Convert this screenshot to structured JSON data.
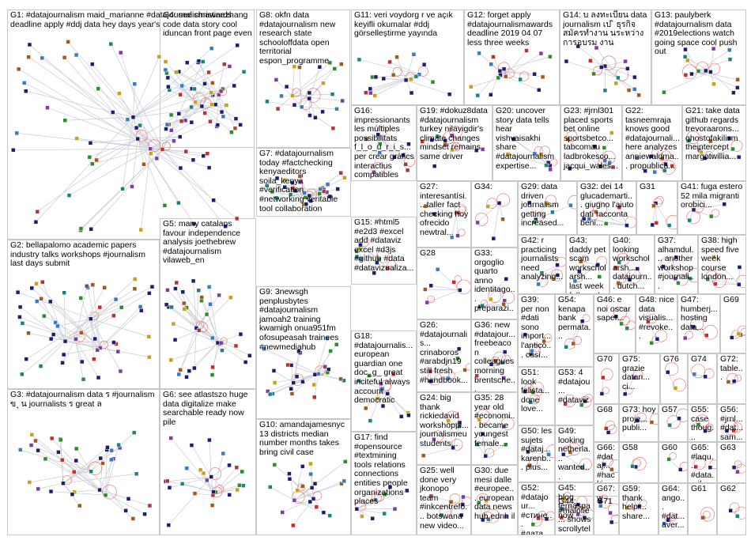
{
  "groups": [
    {
      "id": "G1",
      "text": "G1: #datajournalism maid_marianne #datajournalismawards deadline apply #ddj data hey days year's",
      "nodes": 70
    },
    {
      "id": "G4",
      "text": "G4: see christinezhang code data story cool iduncan front page even",
      "nodes": 46
    },
    {
      "id": "G8",
      "text": "G8: okfn data #datajournalism new research state schooloffdata open territorial espon_programme",
      "nodes": 24
    },
    {
      "id": "G11",
      "text": "G11: veri voydorg r ve açık keyifli okumalar #ddj görselleştirme yayında",
      "nodes": 20
    },
    {
      "id": "G12",
      "text": "G12: forget apply #datajournalismawards deadline 2019 04 07 less three weeks",
      "nodes": 18
    },
    {
      "id": "G14",
      "text": "G14: บ ลงทะเบียน data journalism เป ิ ธุรกิจสมัครทำงาน นระหว่าง การอบรม งาน",
      "nodes": 16
    },
    {
      "id": "G13",
      "text": "G13: paulyberk #datajournalism data #2019elections watch going space cool push out",
      "nodes": 16
    },
    {
      "id": "G16",
      "text": "G16: impressionants les múltiples possibilitats f_l_o_u_r_i_s... per crear gràfics interactius compatibles",
      "nodes": 10
    },
    {
      "id": "G19",
      "text": "G19: #dokuz8data #datajournalism turkey nilayigdir's climate changes mindset remains same driver",
      "nodes": 10
    },
    {
      "id": "G20",
      "text": "G20: uncover story data tells hear vishvaisakhi share #datajournalism expertise...",
      "nodes": 9
    },
    {
      "id": "G23",
      "text": "G23: #jrnl301 placed sports bet online sportsbetco... tabcomau ladbrokesco... jacqui_wales...",
      "nodes": 9
    },
    {
      "id": "G22",
      "text": "G22: tasneemraja knows good #datajournali... here analyzes anniewaldma... propublica...",
      "nodes": 8
    },
    {
      "id": "G21",
      "text": "G21: take data github regards trevoraarons... ghostofakilism theintercept margotwillia...",
      "nodes": 8
    },
    {
      "id": "G7",
      "text": "G7: #datajournalism today #factchecking kenyaeditors soila_kenya #verification #networking veritable tool collaboration",
      "nodes": 32
    },
    {
      "id": "G27",
      "text": "G27: interesantísi... taller fact checking hoy ofrecido newtral...",
      "nodes": 6
    },
    {
      "id": "G34",
      "text": "G34:",
      "nodes": 5
    },
    {
      "id": "G29",
      "text": "G29: data driven journalism getting increased...",
      "nodes": 6
    },
    {
      "id": "G32",
      "text": "G32: dei 14 glucademarti... giugno l'aiuto dati racconta beni...",
      "nodes": 6
    },
    {
      "id": "G31",
      "text": "G31",
      "nodes": 5
    },
    {
      "id": "G41",
      "text": "G41: fuga estero 52 mila migranti orobici...",
      "nodes": 4
    },
    {
      "id": "G15",
      "text": "G15: #html5 #e2d3 #excel add #dataviz excel #d3js #github #data #datavizualiza...",
      "nodes": 9
    },
    {
      "id": "G28",
      "text": "G28",
      "nodes": 6
    },
    {
      "id": "G33",
      "text": "G33: orgoglio quarto anno identitago... preparazi...",
      "nodes": 6
    },
    {
      "id": "G42",
      "text": "G42: r practicing journalists need analyzing...",
      "nodes": 5
    },
    {
      "id": "G43",
      "text": "G43: daddy pet scam workscholarsh... last week followed...",
      "nodes": 5
    },
    {
      "id": "G40",
      "text": "G40: looking workscholarsh... datajourn... dutch...",
      "nodes": 5
    },
    {
      "id": "G37",
      "text": "G37: alhamdul... another workshop #journali...",
      "nodes": 5
    },
    {
      "id": "G38",
      "text": "G38: high speed five week course london...",
      "nodes": 5
    },
    {
      "id": "G5",
      "text": "G5: many catalans favour independence analysis joethebrew #datajournalism vilaweb_en",
      "nodes": 40
    },
    {
      "id": "G2",
      "text": "G2: bellapalomo academic papers industry talks workshops #journalism last days submit",
      "nodes": 55
    },
    {
      "id": "G9",
      "text": "G9: 3newsgh penplusbytes #datajournalism jamoah2 training kwamigh onua951fm ofosupeasah trainees #newmediahub",
      "nodes": 28
    },
    {
      "id": "G39",
      "text": "G39: per non #dati sono import... l'antico... così...",
      "nodes": 4
    },
    {
      "id": "G54",
      "text": "G54: kenapa bank permata...",
      "nodes": 3
    },
    {
      "id": "G46",
      "text": "G46: e noi oscar saper...",
      "nodes": 3
    },
    {
      "id": "G48",
      "text": "G48: nice data visualis... #revoke...",
      "nodes": 3
    },
    {
      "id": "G47",
      "text": "G47: humberj... hosting data...",
      "nodes": 3
    },
    {
      "id": "G69",
      "text": "G69",
      "nodes": 3
    },
    {
      "id": "G18",
      "text": "G18: #datajournalis... european guardian one doc_g_ great inciteful always account democratic",
      "nodes": 14
    },
    {
      "id": "G26",
      "text": "G26: #datajournalis... crinaboros #arabdjn19 still fresh #handbook...",
      "nodes": 6
    },
    {
      "id": "G36",
      "text": "G36: new #datajour... freebeacon colleagues morning brentsche...",
      "nodes": 6
    },
    {
      "id": "G51",
      "text": "G51: look felista... done love...",
      "nodes": 3
    },
    {
      "id": "G53",
      "text": "G53: 4 #datajou... #dataviz",
      "nodes": 3
    },
    {
      "id": "G70",
      "text": "G70",
      "nodes": 2
    },
    {
      "id": "G75",
      "text": "G75: grazie datan... ci...",
      "nodes": 2
    },
    {
      "id": "G76",
      "text": "G76",
      "nodes": 2
    },
    {
      "id": "G74",
      "text": "G74",
      "nodes": 2
    },
    {
      "id": "G72",
      "text": "G72: table...",
      "nodes": 2
    },
    {
      "id": "G3",
      "text": "G3: #datajournalism data ร #journalism ข ุ น journalists ร great ล",
      "nodes": 40
    },
    {
      "id": "G6",
      "text": "G6: see atlastszo huge data digitalize make searchable ready now pile",
      "nodes": 26
    },
    {
      "id": "G68",
      "text": "G68",
      "nodes": 2
    },
    {
      "id": "G24",
      "text": "G24: big thank rickiedavid workshoppi... journalismeu students...",
      "nodes": 6
    },
    {
      "id": "G35",
      "text": "G35: 28 year old #economi... became youngest female...",
      "nodes": 6
    },
    {
      "id": "G49",
      "text": "G49: looking netherla... wanted...",
      "nodes": 3
    },
    {
      "id": "G73",
      "text": "G73: hoy proje... publi...",
      "nodes": 2
    },
    {
      "id": "G57",
      "text": "G57",
      "nodes": 2
    },
    {
      "id": "G55",
      "text": "G55: case thoug... #data...",
      "nodes": 2
    },
    {
      "id": "G56",
      "text": "G56: #jrnl... #dat... sam...",
      "nodes": 2
    },
    {
      "id": "G10",
      "text": "G10: amandajamesnyc 13 districts median number months takes bring civil case",
      "nodes": 22
    },
    {
      "id": "G17",
      "text": "G17: find #opensource #textmining tools relations connections entities people organizations places",
      "nodes": 10
    },
    {
      "id": "G50",
      "text": "G50: les sujets #dataj... karenb... plus...",
      "nodes": 3
    },
    {
      "id": "G66",
      "text": "G66: #dataj... #hacki...",
      "nodes": 2
    },
    {
      "id": "G58",
      "text": "G58",
      "nodes": 2
    },
    {
      "id": "G60",
      "text": "G60",
      "nodes": 2
    },
    {
      "id": "G65",
      "text": "G65: #laqu... #data... il...",
      "nodes": 2
    },
    {
      "id": "G63",
      "text": "G63",
      "nodes": 2
    },
    {
      "id": "G45",
      "text": "G45: blog ternaspa now online...",
      "nodes": 3
    },
    {
      "id": "G67",
      "text": "G67: w",
      "nodes": 2
    },
    {
      "id": "G25",
      "text": "G25: well done very jkonopo team #inkcentrefo... botswana new video...",
      "nodes": 6
    },
    {
      "id": "G30",
      "text": "G30: due mesi dalle #europee... european data news hub ednh il",
      "nodes": 6
    },
    {
      "id": "G52",
      "text": "G52: #datajour... #стине... #дата... #журн...",
      "nodes": 3
    },
    {
      "id": "G44",
      "text": "G44: #malofie... shows scrollytel...",
      "nodes": 3
    },
    {
      "id": "G71",
      "text": "G71",
      "nodes": 2
    },
    {
      "id": "G59",
      "text": "G59: thank helpi... share...",
      "nodes": 2
    },
    {
      "id": "G64",
      "text": "G64: ango... #dat... aver...",
      "nodes": 2
    },
    {
      "id": "G61",
      "text": "G61",
      "nodes": 2
    },
    {
      "id": "G62",
      "text": "G62",
      "nodes": 2
    }
  ],
  "colors": {
    "border": "#c8c8c8",
    "edge": "#c8ccd4",
    "self_loop": "#e86a6a",
    "node_fill": "#1e1e6e",
    "node_alt": [
      "#2d8c2d",
      "#c03030",
      "#7a3fa0",
      "#c8a020",
      "#3a7ac0",
      "#a05a20",
      "#208080"
    ]
  }
}
